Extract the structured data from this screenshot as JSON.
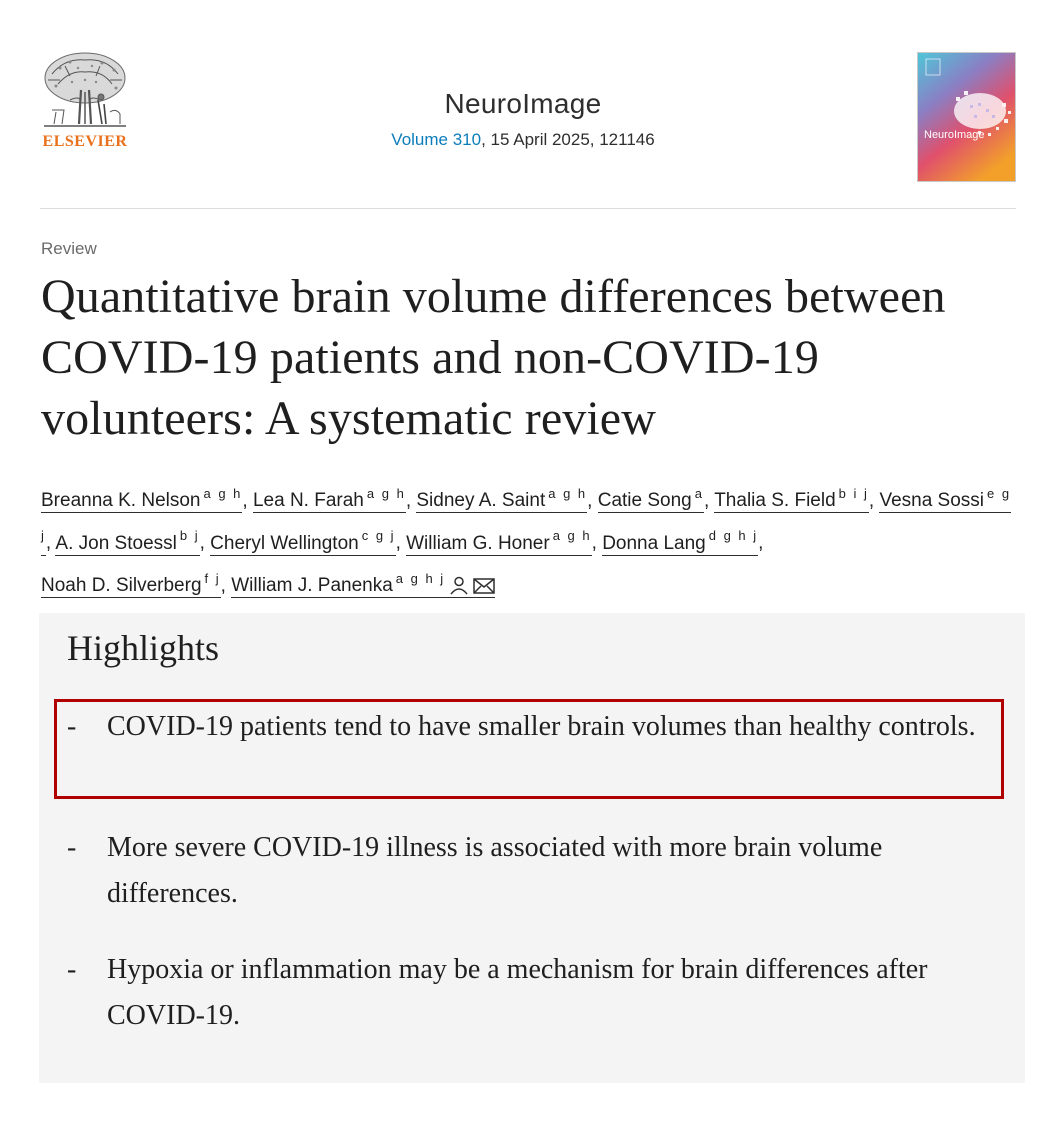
{
  "publisher": {
    "name": "ELSEVIER",
    "logo_icon": "tree-logo-icon"
  },
  "journal": {
    "title": "NeuroImage",
    "volume_link": "Volume 310",
    "issue_details": ", 15 April 2025, 121146",
    "cover_title": "NeuroImage"
  },
  "article": {
    "type": "Review",
    "title": "Quantitative brain volume differences between COVID-19 patients and non-COVID-19 volunteers: A systematic review"
  },
  "authors": [
    {
      "name": "Breanna K. Nelson",
      "affils": "a g h"
    },
    {
      "name": "Lea N. Farah",
      "affils": "a g h"
    },
    {
      "name": "Sidney A. Saint",
      "affils": "a g h"
    },
    {
      "name": "Catie Song",
      "affils": "a"
    },
    {
      "name": "Thalia S. Field",
      "affils": "b i j"
    },
    {
      "name": "Vesna Sossi",
      "affils": "e g j"
    },
    {
      "name": "A. Jon Stoessl",
      "affils": "b j"
    },
    {
      "name": "Cheryl Wellington",
      "affils": "c g j"
    },
    {
      "name": "William G. Honer",
      "affils": "a g h"
    },
    {
      "name": "Donna Lang",
      "affils": "d g h j"
    },
    {
      "name": "Noah D. Silverberg",
      "affils": "f j"
    },
    {
      "name": "William J. Panenka",
      "affils": "a g h j"
    }
  ],
  "separator": ",",
  "corresponding_icons": [
    "person-icon",
    "envelope-icon"
  ],
  "highlights": {
    "title": "Highlights",
    "bullet": "-",
    "items": [
      "COVID-19 patients tend to have smaller brain volumes than healthy controls.",
      "More severe COVID-19 illness is associated with more brain volume differences.",
      "Hypoxia or inflammation may be a mechanism for brain differences after COVID-19."
    ]
  },
  "colors": {
    "link": "#0c7dbb",
    "publisher_orange": "#e9711c",
    "highlight_box": "#b00000",
    "panel_bg": "#f4f4f4"
  }
}
